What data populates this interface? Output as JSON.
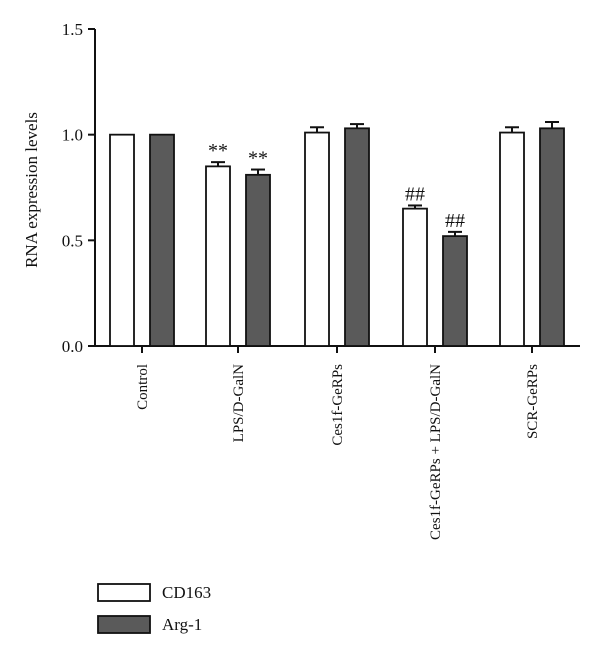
{
  "chart_data": {
    "type": "bar",
    "ylabel": "RNA expression levels",
    "xlabel": "",
    "ylim": [
      0,
      1.5
    ],
    "yticks": [
      "0.0",
      "0.5",
      "1.0",
      "1.5"
    ],
    "categories": [
      "Control",
      "LPS/D-GalN",
      "Ces1f-GeRPs",
      "Ces1f-GeRPs + LPS/D-GalN",
      "SCR-GeRPs"
    ],
    "series": [
      {
        "name": "CD163",
        "color": "#ffffff",
        "values": [
          1.0,
          0.85,
          1.01,
          0.65,
          1.01
        ],
        "errors": [
          0.0,
          0.02,
          0.025,
          0.015,
          0.025
        ],
        "annotations": [
          "",
          "**",
          "",
          "##",
          ""
        ]
      },
      {
        "name": "Arg-1",
        "color": "#5a5a5a",
        "values": [
          1.0,
          0.81,
          1.03,
          0.52,
          1.03
        ],
        "errors": [
          0.0,
          0.025,
          0.02,
          0.02,
          0.03
        ],
        "annotations": [
          "",
          "**",
          "",
          "##",
          ""
        ]
      }
    ],
    "legend_position": "bottom-left",
    "grid": false
  }
}
